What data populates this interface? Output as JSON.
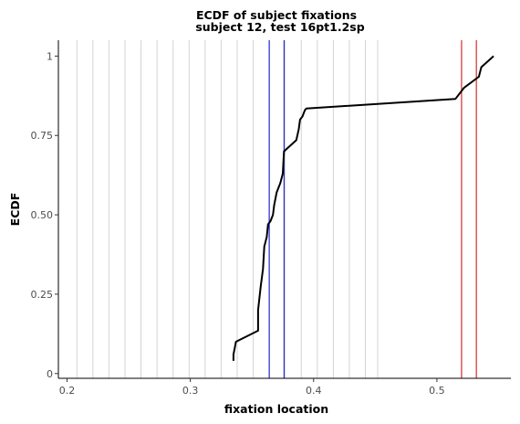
{
  "chart_data": {
    "type": "line",
    "title": "ECDF of subject fixations",
    "subtitle": "subject 12, test 16pt1.2sp",
    "xlabel": "fixation location",
    "ylabel": "ECDF",
    "xlim": [
      0.193,
      0.56
    ],
    "ylim": [
      -0.015,
      1.05
    ],
    "x_ticks": [
      0.2,
      0.3,
      0.4,
      0.5
    ],
    "x_tick_labels": [
      "0.2",
      "0.3",
      "0.4",
      "0.5"
    ],
    "y_ticks": [
      0,
      0.25,
      0.5,
      0.75,
      1.0
    ],
    "y_tick_labels": [
      "0",
      "0.25",
      "0.50",
      "0.75",
      "1"
    ],
    "grid": "vertical light gray lines at word positions",
    "grey_lines": [
      0.208,
      0.221,
      0.234,
      0.247,
      0.26,
      0.273,
      0.286,
      0.299,
      0.312,
      0.325,
      0.338,
      0.351,
      0.364,
      0.377,
      0.39,
      0.403,
      0.416,
      0.429,
      0.442,
      0.452
    ],
    "blue_lines": [
      0.364,
      0.376
    ],
    "red_lines": [
      0.52,
      0.532
    ],
    "series": [
      {
        "color": "#000000",
        "x": [
          0.335,
          0.335,
          0.336,
          0.337,
          0.355,
          0.355,
          0.357,
          0.359,
          0.36,
          0.362,
          0.363,
          0.365,
          0.367,
          0.368,
          0.37,
          0.373,
          0.375,
          0.376,
          0.386,
          0.388,
          0.389,
          0.391,
          0.392,
          0.393,
          0.394,
          0.515,
          0.522,
          0.534,
          0.536,
          0.546
        ],
        "y": [
          0.04,
          0.06,
          0.08,
          0.1,
          0.135,
          0.2,
          0.27,
          0.33,
          0.4,
          0.43,
          0.47,
          0.48,
          0.5,
          0.53,
          0.57,
          0.6,
          0.63,
          0.7,
          0.735,
          0.77,
          0.8,
          0.81,
          0.82,
          0.83,
          0.835,
          0.865,
          0.9,
          0.935,
          0.965,
          1.0
        ]
      }
    ]
  }
}
